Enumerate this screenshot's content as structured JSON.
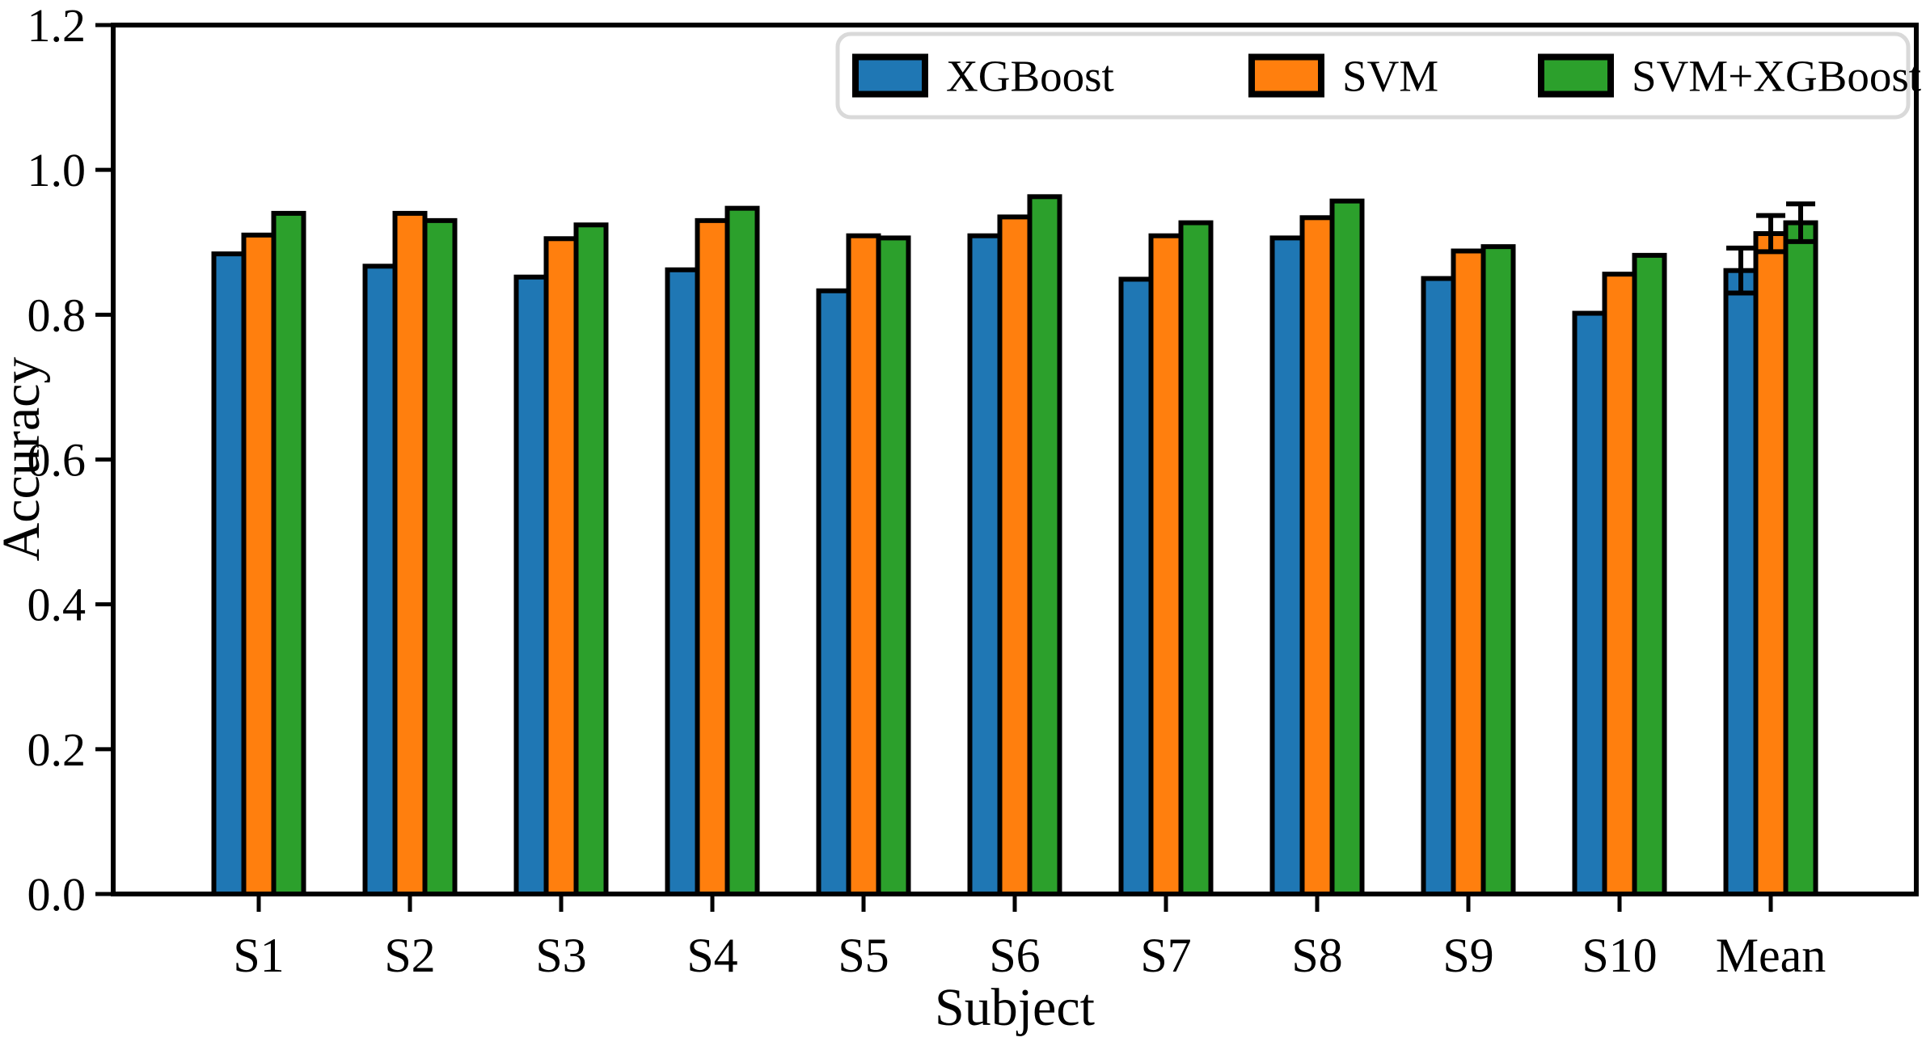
{
  "figure": {
    "background": "#ffffff"
  },
  "chart_data": {
    "type": "bar",
    "title": "",
    "xlabel": "Subject",
    "ylabel": "Accuracy",
    "categories": [
      "S1",
      "S2",
      "S3",
      "S4",
      "S5",
      "S6",
      "S7",
      "S8",
      "S9",
      "S10",
      "Mean"
    ],
    "series": [
      {
        "name": "XGBoost",
        "color": "#1f77b4",
        "values": [
          0.884,
          0.867,
          0.852,
          0.862,
          0.833,
          0.909,
          0.849,
          0.906,
          0.85,
          0.802,
          0.861
        ]
      },
      {
        "name": "SVM",
        "color": "#ff7f0e",
        "values": [
          0.91,
          0.94,
          0.905,
          0.93,
          0.909,
          0.935,
          0.909,
          0.934,
          0.888,
          0.856,
          0.912
        ]
      },
      {
        "name": "SVM+XGBoost",
        "color": "#2ca02c",
        "values": [
          0.94,
          0.93,
          0.924,
          0.947,
          0.906,
          0.963,
          0.927,
          0.957,
          0.894,
          0.882,
          0.927
        ]
      }
    ],
    "error_bars": {
      "category": "Mean",
      "values": {
        "XGBoost": 0.031,
        "SVM": 0.025,
        "SVM+XGBoost": 0.026
      }
    },
    "ylim": [
      0.0,
      1.2
    ],
    "yticks": [
      0.0,
      0.2,
      0.4,
      0.6,
      0.8,
      1.0,
      1.2
    ],
    "ytick_labels": [
      "0.0",
      "0.2",
      "0.4",
      "0.6",
      "0.8",
      "1.0",
      "1.2"
    ],
    "grid": false,
    "legend_position": "upper right",
    "bar_edge_color": "#000000",
    "axis_color": "#000000",
    "legend_frame_color": "#d9d9d9"
  }
}
